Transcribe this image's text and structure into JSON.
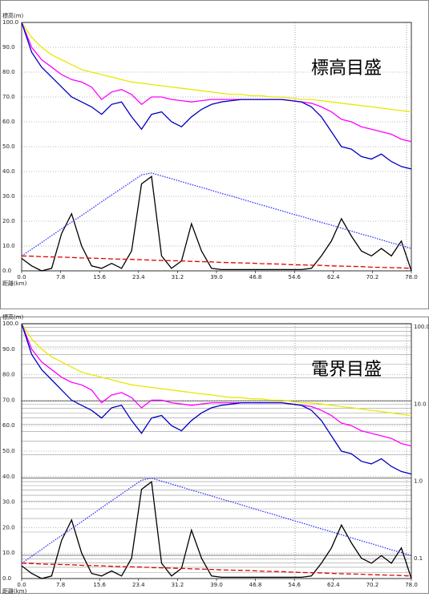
{
  "chart_data": [
    {
      "type": "line",
      "annotation": "標高目盛",
      "y_label": "標高(m)",
      "x_label": "距離(km)",
      "x": [
        0,
        2,
        4,
        6,
        8,
        10,
        12,
        14,
        16,
        18,
        20,
        22,
        24,
        26,
        28,
        30,
        32,
        34,
        36,
        38,
        40,
        42,
        44,
        46,
        48,
        50,
        52,
        54,
        56,
        58,
        60,
        62,
        64,
        66,
        68,
        70,
        72,
        74,
        76,
        78
      ],
      "xlim": [
        0,
        78
      ],
      "xticks": [
        {
          "value": 0,
          "label": "0.0"
        },
        7.8,
        15.6,
        23.4,
        31.2,
        {
          "value": 39,
          "label": "39.0"
        },
        46.8,
        54.6,
        62.4,
        70.2,
        {
          "value": 78,
          "label": "78.0"
        }
      ],
      "ylim": [
        0,
        100
      ],
      "yticks": [
        {
          "value": 0,
          "label": "0.0"
        },
        {
          "value": 10,
          "label": "10.0"
        },
        {
          "value": 20,
          "label": "20.0"
        },
        {
          "value": 30,
          "label": "30.0"
        },
        {
          "value": 40,
          "label": "40.0"
        },
        {
          "value": 50,
          "label": "50.0"
        },
        {
          "value": 60,
          "label": "60.0"
        },
        {
          "value": 70,
          "label": "70.0"
        },
        {
          "value": 80,
          "label": "80.0"
        },
        {
          "value": 90,
          "label": "90.0"
        },
        {
          "value": 100,
          "label": "100.0"
        }
      ],
      "grid": true,
      "series": [
        {
          "color": "#e8e800",
          "style": "solid",
          "values": [
            100,
            94,
            90,
            87,
            85,
            83,
            81,
            80,
            79,
            78,
            77,
            76,
            75.5,
            75,
            74.5,
            74,
            73.5,
            73,
            72.5,
            72,
            71.5,
            71,
            71,
            70.5,
            70.5,
            70,
            70,
            69.5,
            69,
            69,
            68.5,
            68,
            67.5,
            67,
            66.5,
            66,
            65.5,
            65,
            64.5,
            64
          ]
        },
        {
          "color": "#ff00ff",
          "style": "solid",
          "values": [
            100,
            90,
            85,
            82,
            79,
            77,
            76,
            74,
            69,
            72,
            73,
            71,
            67,
            70,
            70,
            69,
            68.5,
            68,
            68.5,
            69,
            69,
            69,
            69,
            69,
            69,
            69,
            69,
            68.5,
            68,
            67.5,
            66,
            64,
            61,
            60,
            58,
            57,
            56,
            55,
            53,
            52
          ]
        },
        {
          "color": "#0000c0",
          "style": "solid",
          "values": [
            100,
            88,
            82,
            78,
            74,
            70,
            68,
            66,
            63,
            67,
            68,
            62,
            57,
            63,
            64,
            60,
            58,
            62,
            65,
            67,
            68,
            68.5,
            69,
            69,
            69,
            69,
            69,
            68.5,
            68,
            66,
            62,
            56,
            50,
            49,
            46,
            45,
            47,
            44,
            42,
            41
          ]
        },
        {
          "color": "#000000",
          "style": "solid",
          "values": [
            5,
            2,
            0,
            1,
            15,
            23,
            10,
            2,
            1,
            3,
            1,
            8,
            35,
            38,
            6,
            1,
            4,
            19,
            8,
            1,
            0.5,
            0.5,
            0.5,
            0.5,
            0.5,
            0.5,
            0.5,
            0.5,
            0.5,
            1,
            6,
            12,
            21,
            14,
            8,
            6,
            9,
            6,
            12,
            0
          ]
        },
        {
          "color": "#3030ff",
          "style": "dotted",
          "values": [
            6,
            8.7,
            11.4,
            14.2,
            16.9,
            19.6,
            22.3,
            25,
            27.8,
            30.5,
            33.2,
            35.9,
            38.6,
            39.4,
            38.2,
            37.1,
            35.9,
            34.7,
            33.6,
            32.4,
            31.2,
            30.1,
            28.9,
            27.7,
            26.5,
            25.4,
            24.2,
            23,
            21.9,
            20.7,
            19.5,
            18.4,
            17.2,
            16,
            14.8,
            13.7,
            12.5,
            11.3,
            10.2,
            9
          ]
        },
        {
          "color": "#e00000",
          "style": "dashed",
          "values": [
            6,
            5.9,
            5.7,
            5.6,
            5.5,
            5.4,
            5.2,
            5.1,
            5,
            4.8,
            4.7,
            4.6,
            4.5,
            4.3,
            4.2,
            4.1,
            4,
            3.8,
            3.7,
            3.6,
            3.4,
            3.3,
            3.2,
            3.1,
            2.9,
            2.8,
            2.7,
            2.5,
            2.4,
            2.3,
            2.2,
            2,
            1.9,
            1.8,
            1.7,
            1.5,
            1.4,
            1.3,
            1.2,
            1
          ]
        }
      ]
    },
    {
      "type": "line",
      "annotation": "電界目盛",
      "y_label": "標高(m)",
      "x_label": "距離(km)",
      "x": [
        0,
        2,
        4,
        6,
        8,
        10,
        12,
        14,
        16,
        18,
        20,
        22,
        24,
        26,
        28,
        30,
        32,
        34,
        36,
        38,
        40,
        42,
        44,
        46,
        48,
        50,
        52,
        54,
        56,
        58,
        60,
        62,
        64,
        66,
        68,
        70,
        72,
        74,
        76,
        78
      ],
      "xlim": [
        0,
        78
      ],
      "xticks": [
        {
          "value": 0,
          "label": "0.0"
        },
        7.8,
        15.6,
        23.4,
        31.2,
        {
          "value": 39,
          "label": "39.0"
        },
        46.8,
        54.6,
        62.4,
        70.2,
        {
          "value": 78,
          "label": "78.0"
        }
      ],
      "ylim": [
        0,
        100
      ],
      "yticks": [
        {
          "value": 0,
          "label": "0.0"
        },
        {
          "value": 10,
          "label": "10.0"
        },
        {
          "value": 20,
          "label": "20.0"
        },
        {
          "value": 30,
          "label": "30.0"
        },
        {
          "value": 40,
          "label": "40.0"
        },
        {
          "value": 50,
          "label": "50.0"
        },
        {
          "value": 60,
          "label": "60.0"
        },
        {
          "value": 70,
          "label": "70.0"
        },
        {
          "value": 80,
          "label": "80.0"
        },
        {
          "value": 90,
          "label": "90.0"
        },
        {
          "value": 100,
          "label": "100.0"
        }
      ],
      "y2lim": [
        0.05,
        100
      ],
      "y2log": true,
      "y2ticks": [
        {
          "value": 100,
          "label": "100.0"
        },
        {
          "value": 10,
          "label": "10.0"
        },
        {
          "value": 1,
          "label": "1.0"
        },
        0.1
      ],
      "grid": true,
      "series": [
        {
          "color": "#e8e800",
          "style": "solid",
          "values": [
            100,
            94,
            90,
            87,
            85,
            83,
            81,
            80,
            79,
            78,
            77,
            76,
            75.5,
            75,
            74.5,
            74,
            73.5,
            73,
            72.5,
            72,
            71.5,
            71,
            71,
            70.5,
            70.5,
            70,
            70,
            69.5,
            69,
            69,
            68.5,
            68,
            67.5,
            67,
            66.5,
            66,
            65.5,
            65,
            64.5,
            64
          ]
        },
        {
          "color": "#ff00ff",
          "style": "solid",
          "values": [
            100,
            90,
            85,
            82,
            79,
            77,
            76,
            74,
            69,
            72,
            73,
            71,
            67,
            70,
            70,
            69,
            68.5,
            68,
            68.5,
            69,
            69,
            69,
            69,
            69,
            69,
            69,
            69,
            68.5,
            68,
            67.5,
            66,
            64,
            61,
            60,
            58,
            57,
            56,
            55,
            53,
            52
          ]
        },
        {
          "color": "#0000c0",
          "style": "solid",
          "values": [
            100,
            88,
            82,
            78,
            74,
            70,
            68,
            66,
            63,
            67,
            68,
            62,
            57,
            63,
            64,
            60,
            58,
            62,
            65,
            67,
            68,
            68.5,
            69,
            69,
            69,
            69,
            69,
            68.5,
            68,
            66,
            62,
            56,
            50,
            49,
            46,
            45,
            47,
            44,
            42,
            41
          ]
        },
        {
          "color": "#000000",
          "style": "solid",
          "values": [
            5,
            2,
            0,
            1,
            15,
            23,
            10,
            2,
            1,
            3,
            1,
            8,
            35,
            38,
            6,
            1,
            4,
            19,
            8,
            1,
            0.5,
            0.5,
            0.5,
            0.5,
            0.5,
            0.5,
            0.5,
            0.5,
            0.5,
            1,
            6,
            12,
            21,
            14,
            8,
            6,
            9,
            6,
            12,
            0
          ]
        },
        {
          "color": "#3030ff",
          "style": "dotted",
          "values": [
            6,
            8.7,
            11.4,
            14.2,
            16.9,
            19.6,
            22.3,
            25,
            27.8,
            30.5,
            33.2,
            35.9,
            38.6,
            39.4,
            38.2,
            37.1,
            35.9,
            34.7,
            33.6,
            32.4,
            31.2,
            30.1,
            28.9,
            27.7,
            26.5,
            25.4,
            24.2,
            23,
            21.9,
            20.7,
            19.5,
            18.4,
            17.2,
            16,
            14.8,
            13.7,
            12.5,
            11.3,
            10.2,
            9
          ]
        },
        {
          "color": "#e00000",
          "style": "dashed",
          "values": [
            6,
            5.9,
            5.7,
            5.6,
            5.5,
            5.4,
            5.2,
            5.1,
            5,
            4.8,
            4.7,
            4.6,
            4.5,
            4.3,
            4.2,
            4.1,
            4,
            3.8,
            3.7,
            3.6,
            3.4,
            3.3,
            3.2,
            3.1,
            2.9,
            2.8,
            2.7,
            2.5,
            2.4,
            2.3,
            2.2,
            2,
            1.9,
            1.8,
            1.7,
            1.5,
            1.4,
            1.3,
            1.2,
            1
          ]
        }
      ]
    }
  ]
}
